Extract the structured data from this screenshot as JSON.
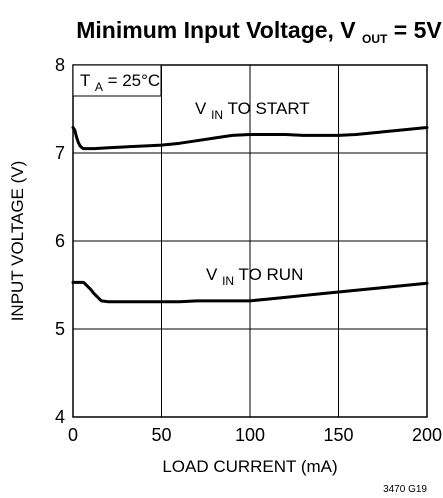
{
  "chart_data": {
    "type": "line",
    "title": {
      "main": "Minimum Input Voltage, V",
      "sub": "OUT",
      "tail": " = 5V"
    },
    "xlabel": "LOAD CURRENT (mA)",
    "ylabel": "INPUT VOLTAGE (V)",
    "xlim": [
      0,
      200
    ],
    "ylim": [
      4,
      8
    ],
    "xticks": [
      0,
      50,
      100,
      150,
      200
    ],
    "yticks": [
      4,
      5,
      6,
      7,
      8
    ],
    "grid": true,
    "series": [
      {
        "name": "V_IN TO START",
        "x": [
          0,
          1,
          2,
          3,
          4,
          5,
          6,
          8,
          12,
          20,
          30,
          40,
          50,
          60,
          70,
          80,
          90,
          100,
          110,
          120,
          130,
          140,
          150,
          160,
          170,
          180,
          190,
          200
        ],
        "y": [
          7.29,
          7.26,
          7.18,
          7.12,
          7.08,
          7.06,
          7.05,
          7.05,
          7.05,
          7.06,
          7.07,
          7.08,
          7.09,
          7.11,
          7.14,
          7.17,
          7.2,
          7.21,
          7.21,
          7.21,
          7.2,
          7.2,
          7.2,
          7.21,
          7.23,
          7.25,
          7.27,
          7.29
        ]
      },
      {
        "name": "V_IN TO RUN",
        "x": [
          0,
          2,
          4,
          6,
          8,
          10,
          12,
          14,
          16,
          20,
          30,
          40,
          50,
          60,
          70,
          80,
          90,
          100,
          110,
          120,
          130,
          140,
          150,
          160,
          170,
          180,
          190,
          200
        ],
        "y": [
          5.53,
          5.53,
          5.53,
          5.53,
          5.49,
          5.45,
          5.4,
          5.36,
          5.32,
          5.31,
          5.31,
          5.31,
          5.31,
          5.31,
          5.32,
          5.32,
          5.32,
          5.32,
          5.34,
          5.36,
          5.38,
          5.4,
          5.42,
          5.44,
          5.46,
          5.48,
          5.5,
          5.52
        ]
      }
    ],
    "annotations": {
      "temperature": {
        "main": "T",
        "sub": "A",
        "tail": " = 25°C"
      },
      "start_label": {
        "main": "V",
        "sub": "IN",
        "tail": " TO START"
      },
      "run_label": {
        "main": "V",
        "sub": "IN",
        "tail": " TO RUN"
      }
    },
    "figure_id": "3470 G19",
    "colors": {
      "line": "#000000",
      "grid": "#000000",
      "background": "#ffffff"
    }
  }
}
